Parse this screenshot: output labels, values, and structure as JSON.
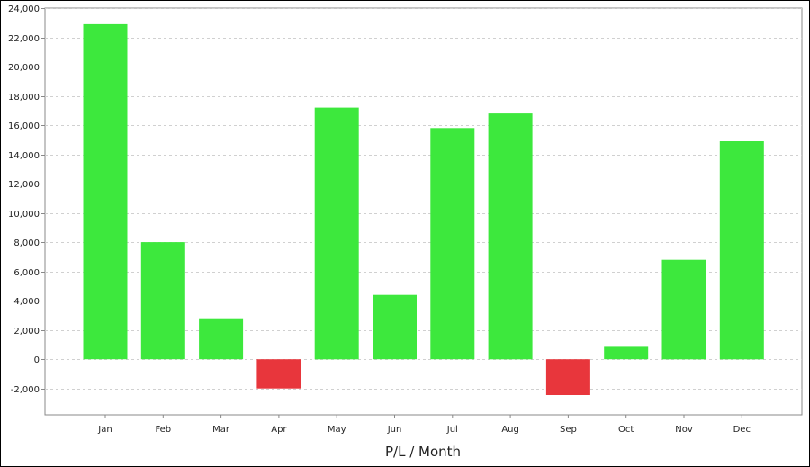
{
  "chart_data": {
    "type": "bar",
    "title": "",
    "xlabel": "P/L / Month",
    "ylabel": "",
    "categories": [
      "Jan",
      "Feb",
      "Mar",
      "Apr",
      "May",
      "Jun",
      "Jul",
      "Aug",
      "Sep",
      "Oct",
      "Nov",
      "Dec"
    ],
    "values": [
      22900,
      8000,
      2800,
      -2000,
      17200,
      4400,
      15800,
      16800,
      -2450,
      850,
      6800,
      14900
    ],
    "ylim": [
      -3800,
      24000
    ],
    "yticks": [
      -2000,
      0,
      2000,
      4000,
      6000,
      8000,
      10000,
      12000,
      14000,
      16000,
      18000,
      20000,
      22000,
      24000
    ],
    "ytick_labels": [
      "-2,000",
      "0",
      "2,000",
      "4,000",
      "6,000",
      "8,000",
      "10,000",
      "12,000",
      "14,000",
      "16,000",
      "18,000",
      "20,000",
      "22,000",
      "24,000"
    ],
    "grid": true,
    "colors": {
      "positive": "#3de83d",
      "negative": "#e8363c",
      "grid": "#d0d0d0",
      "axis": "#888888"
    }
  }
}
